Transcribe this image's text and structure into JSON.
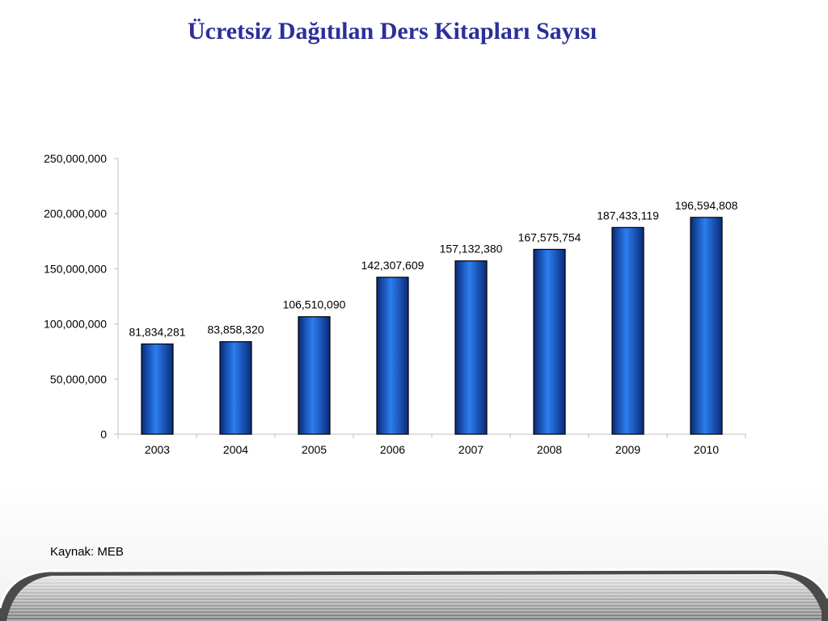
{
  "slide": {
    "title": "Ücretsiz Dağıtılan Ders Kitapları Sayısı",
    "source": "Kaynak: MEB"
  },
  "colors": {
    "title": "#2b2f9a",
    "bar_dark": "#0a2a78",
    "bar_mid": "#1f67d6",
    "bar_light": "#2b7ef0",
    "axis": "#bfbfbf"
  },
  "chart_data": {
    "type": "bar",
    "title": "",
    "xlabel": "",
    "ylabel": "",
    "categories": [
      "2003",
      "2004",
      "2005",
      "2006",
      "2007",
      "2008",
      "2009",
      "2010"
    ],
    "values": [
      81834281,
      83858320,
      106510090,
      142307609,
      157132380,
      167575754,
      187433119,
      196594808
    ],
    "data_labels": [
      "81,834,281",
      "83,858,320",
      "106,510,090",
      "142,307,609",
      "157,132,380",
      "167,575,754",
      "187,433,119",
      "196,594,808"
    ],
    "ylim": [
      0,
      250000000
    ],
    "yticks": [
      0,
      50000000,
      100000000,
      150000000,
      200000000,
      250000000
    ],
    "ytick_labels": [
      "0",
      "50,000,000",
      "100,000,000",
      "150,000,000",
      "200,000,000",
      "250,000,000"
    ],
    "grid": false,
    "legend": "none"
  }
}
